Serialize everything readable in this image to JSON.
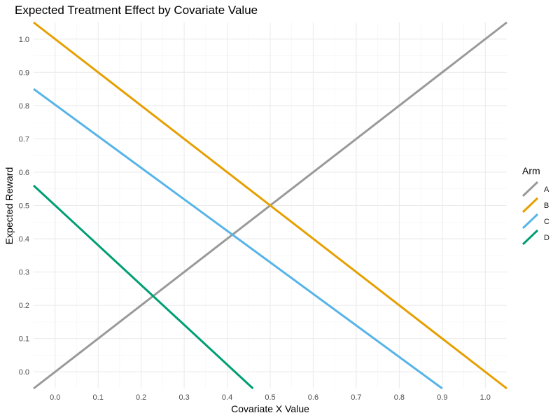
{
  "chart_data": {
    "type": "line",
    "title": "Expected Treatment Effect by Covariate Value",
    "xlabel": "Covariate X Value",
    "ylabel": "Expected Reward",
    "xlim": [
      -0.05,
      1.05
    ],
    "ylim": [
      -0.05,
      1.05
    ],
    "xticks": [
      0.0,
      0.1,
      0.2,
      0.3,
      0.4,
      0.5,
      0.6,
      0.7,
      0.8,
      0.9,
      1.0
    ],
    "yticks": [
      0.0,
      0.1,
      0.2,
      0.3,
      0.4,
      0.5,
      0.6,
      0.7,
      0.8,
      0.9,
      1.0
    ],
    "xtick_labels": [
      "0.0",
      "0.1",
      "0.2",
      "0.3",
      "0.4",
      "0.5",
      "0.6",
      "0.7",
      "0.8",
      "0.9",
      "1.0"
    ],
    "ytick_labels": [
      "0.0",
      "0.1",
      "0.2",
      "0.3",
      "0.4",
      "0.5",
      "0.6",
      "0.7",
      "0.8",
      "0.9",
      "1.0"
    ],
    "grid": true,
    "legend": {
      "title": "Arm",
      "placement": "right"
    },
    "series": [
      {
        "name": "A",
        "color": "#999999",
        "x": [
          -0.05,
          1.05
        ],
        "y": [
          -0.05,
          1.05
        ]
      },
      {
        "name": "B",
        "color": "#E69F00",
        "x": [
          -0.05,
          1.05
        ],
        "y": [
          1.05,
          -0.05
        ]
      },
      {
        "name": "C",
        "color": "#56B4E9",
        "x": [
          -0.05,
          0.9
        ],
        "y": [
          0.85,
          -0.05
        ]
      },
      {
        "name": "D",
        "color": "#009E73",
        "x": [
          -0.05,
          0.46
        ],
        "y": [
          0.56,
          -0.05
        ]
      }
    ]
  }
}
